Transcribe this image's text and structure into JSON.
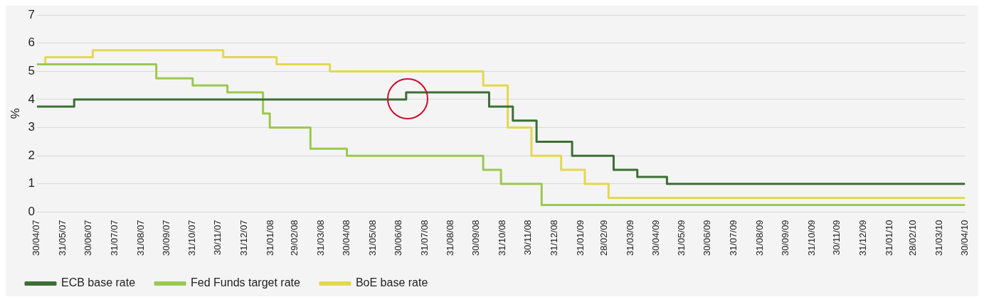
{
  "chart_data": {
    "type": "step",
    "ylabel": "%",
    "xlim": [
      "2007-04-30",
      "2010-04-30"
    ],
    "xticks": [
      {
        "value": "2007-04-30",
        "label": "30/04/07"
      },
      {
        "value": "2007-05-31",
        "label": "31/05/07"
      },
      {
        "value": "2007-06-30",
        "label": "30/06/07"
      },
      {
        "value": "2007-07-31",
        "label": "31/07/07"
      },
      {
        "value": "2007-08-31",
        "label": "31/08/07"
      },
      {
        "value": "2007-09-30",
        "label": "30/09/07"
      },
      {
        "value": "2007-10-31",
        "label": "31/10/07"
      },
      {
        "value": "2007-11-30",
        "label": "30/11/07"
      },
      {
        "value": "2007-12-31",
        "label": "31/12/07"
      },
      {
        "value": "2008-01-31",
        "label": "31/01/08"
      },
      {
        "value": "2008-02-29",
        "label": "29/02/08"
      },
      {
        "value": "2008-03-31",
        "label": "31/03/08"
      },
      {
        "value": "2008-04-30",
        "label": "30/04/08"
      },
      {
        "value": "2008-05-31",
        "label": "31/05/08"
      },
      {
        "value": "2008-06-30",
        "label": "30/06/08"
      },
      {
        "value": "2008-07-31",
        "label": "31/07/08"
      },
      {
        "value": "2008-08-31",
        "label": "31/08/08"
      },
      {
        "value": "2008-09-30",
        "label": "30/09/08"
      },
      {
        "value": "2008-10-31",
        "label": "31/10/08"
      },
      {
        "value": "2008-11-30",
        "label": "30/11/08"
      },
      {
        "value": "2008-12-31",
        "label": "31/12/08"
      },
      {
        "value": "2009-01-31",
        "label": "31/01/09"
      },
      {
        "value": "2009-02-28",
        "label": "28/02/09"
      },
      {
        "value": "2009-03-31",
        "label": "31/03/09"
      },
      {
        "value": "2009-04-30",
        "label": "30/04/09"
      },
      {
        "value": "2009-05-31",
        "label": "31/05/09"
      },
      {
        "value": "2009-06-30",
        "label": "30/06/09"
      },
      {
        "value": "2009-07-31",
        "label": "31/07/09"
      },
      {
        "value": "2009-08-31",
        "label": "31/08/09"
      },
      {
        "value": "2009-09-30",
        "label": "30/09/09"
      },
      {
        "value": "2009-10-31",
        "label": "31/10/09"
      },
      {
        "value": "2009-11-30",
        "label": "30/11/09"
      },
      {
        "value": "2009-12-31",
        "label": "31/12/09"
      },
      {
        "value": "2010-01-31",
        "label": "31/01/10"
      },
      {
        "value": "2010-02-28",
        "label": "28/02/10"
      },
      {
        "value": "2010-03-31",
        "label": "31/03/10"
      },
      {
        "value": "2010-04-30",
        "label": "30/04/10"
      }
    ],
    "ylim": [
      0,
      7
    ],
    "yticks": [
      0,
      1,
      2,
      3,
      4,
      5,
      6,
      7
    ],
    "grid": "y",
    "legend": "bottom",
    "marker": "none",
    "line_style": "solid",
    "series": [
      {
        "name": "ECB base rate",
        "color": "#3c6e35",
        "x": [
          "2007-04-30",
          "2007-06-13",
          "2008-07-09",
          "2008-10-15",
          "2008-11-12",
          "2008-12-10",
          "2009-01-21",
          "2009-03-11",
          "2009-04-08",
          "2009-05-13",
          "2010-04-30"
        ],
        "values": [
          3.75,
          4,
          4.25,
          3.75,
          3.25,
          2.5,
          2,
          1.5,
          1.25,
          1,
          1
        ]
      },
      {
        "name": "Fed Funds target rate",
        "color": "#9bc850",
        "x": [
          "2007-04-30",
          "2007-09-18",
          "2007-10-31",
          "2007-12-11",
          "2008-01-22",
          "2008-01-30",
          "2008-03-18",
          "2008-04-30",
          "2008-10-08",
          "2008-10-29",
          "2008-12-16",
          "2010-04-30"
        ],
        "values": [
          5.25,
          4.75,
          4.5,
          4.25,
          3.5,
          3,
          2.25,
          2,
          1.5,
          1,
          0.25,
          0.25
        ]
      },
      {
        "name": "BoE base rate",
        "color": "#e3d84e",
        "x": [
          "2007-04-30",
          "2007-05-10",
          "2007-07-05",
          "2007-12-06",
          "2008-02-07",
          "2008-04-10",
          "2008-10-08",
          "2008-11-06",
          "2008-12-04",
          "2009-01-08",
          "2009-02-05",
          "2009-03-05",
          "2010-04-30"
        ],
        "values": [
          5.25,
          5.5,
          5.75,
          5.5,
          5.25,
          5,
          4.5,
          3,
          2,
          1.5,
          1,
          0.5,
          0.5
        ]
      }
    ]
  }
}
